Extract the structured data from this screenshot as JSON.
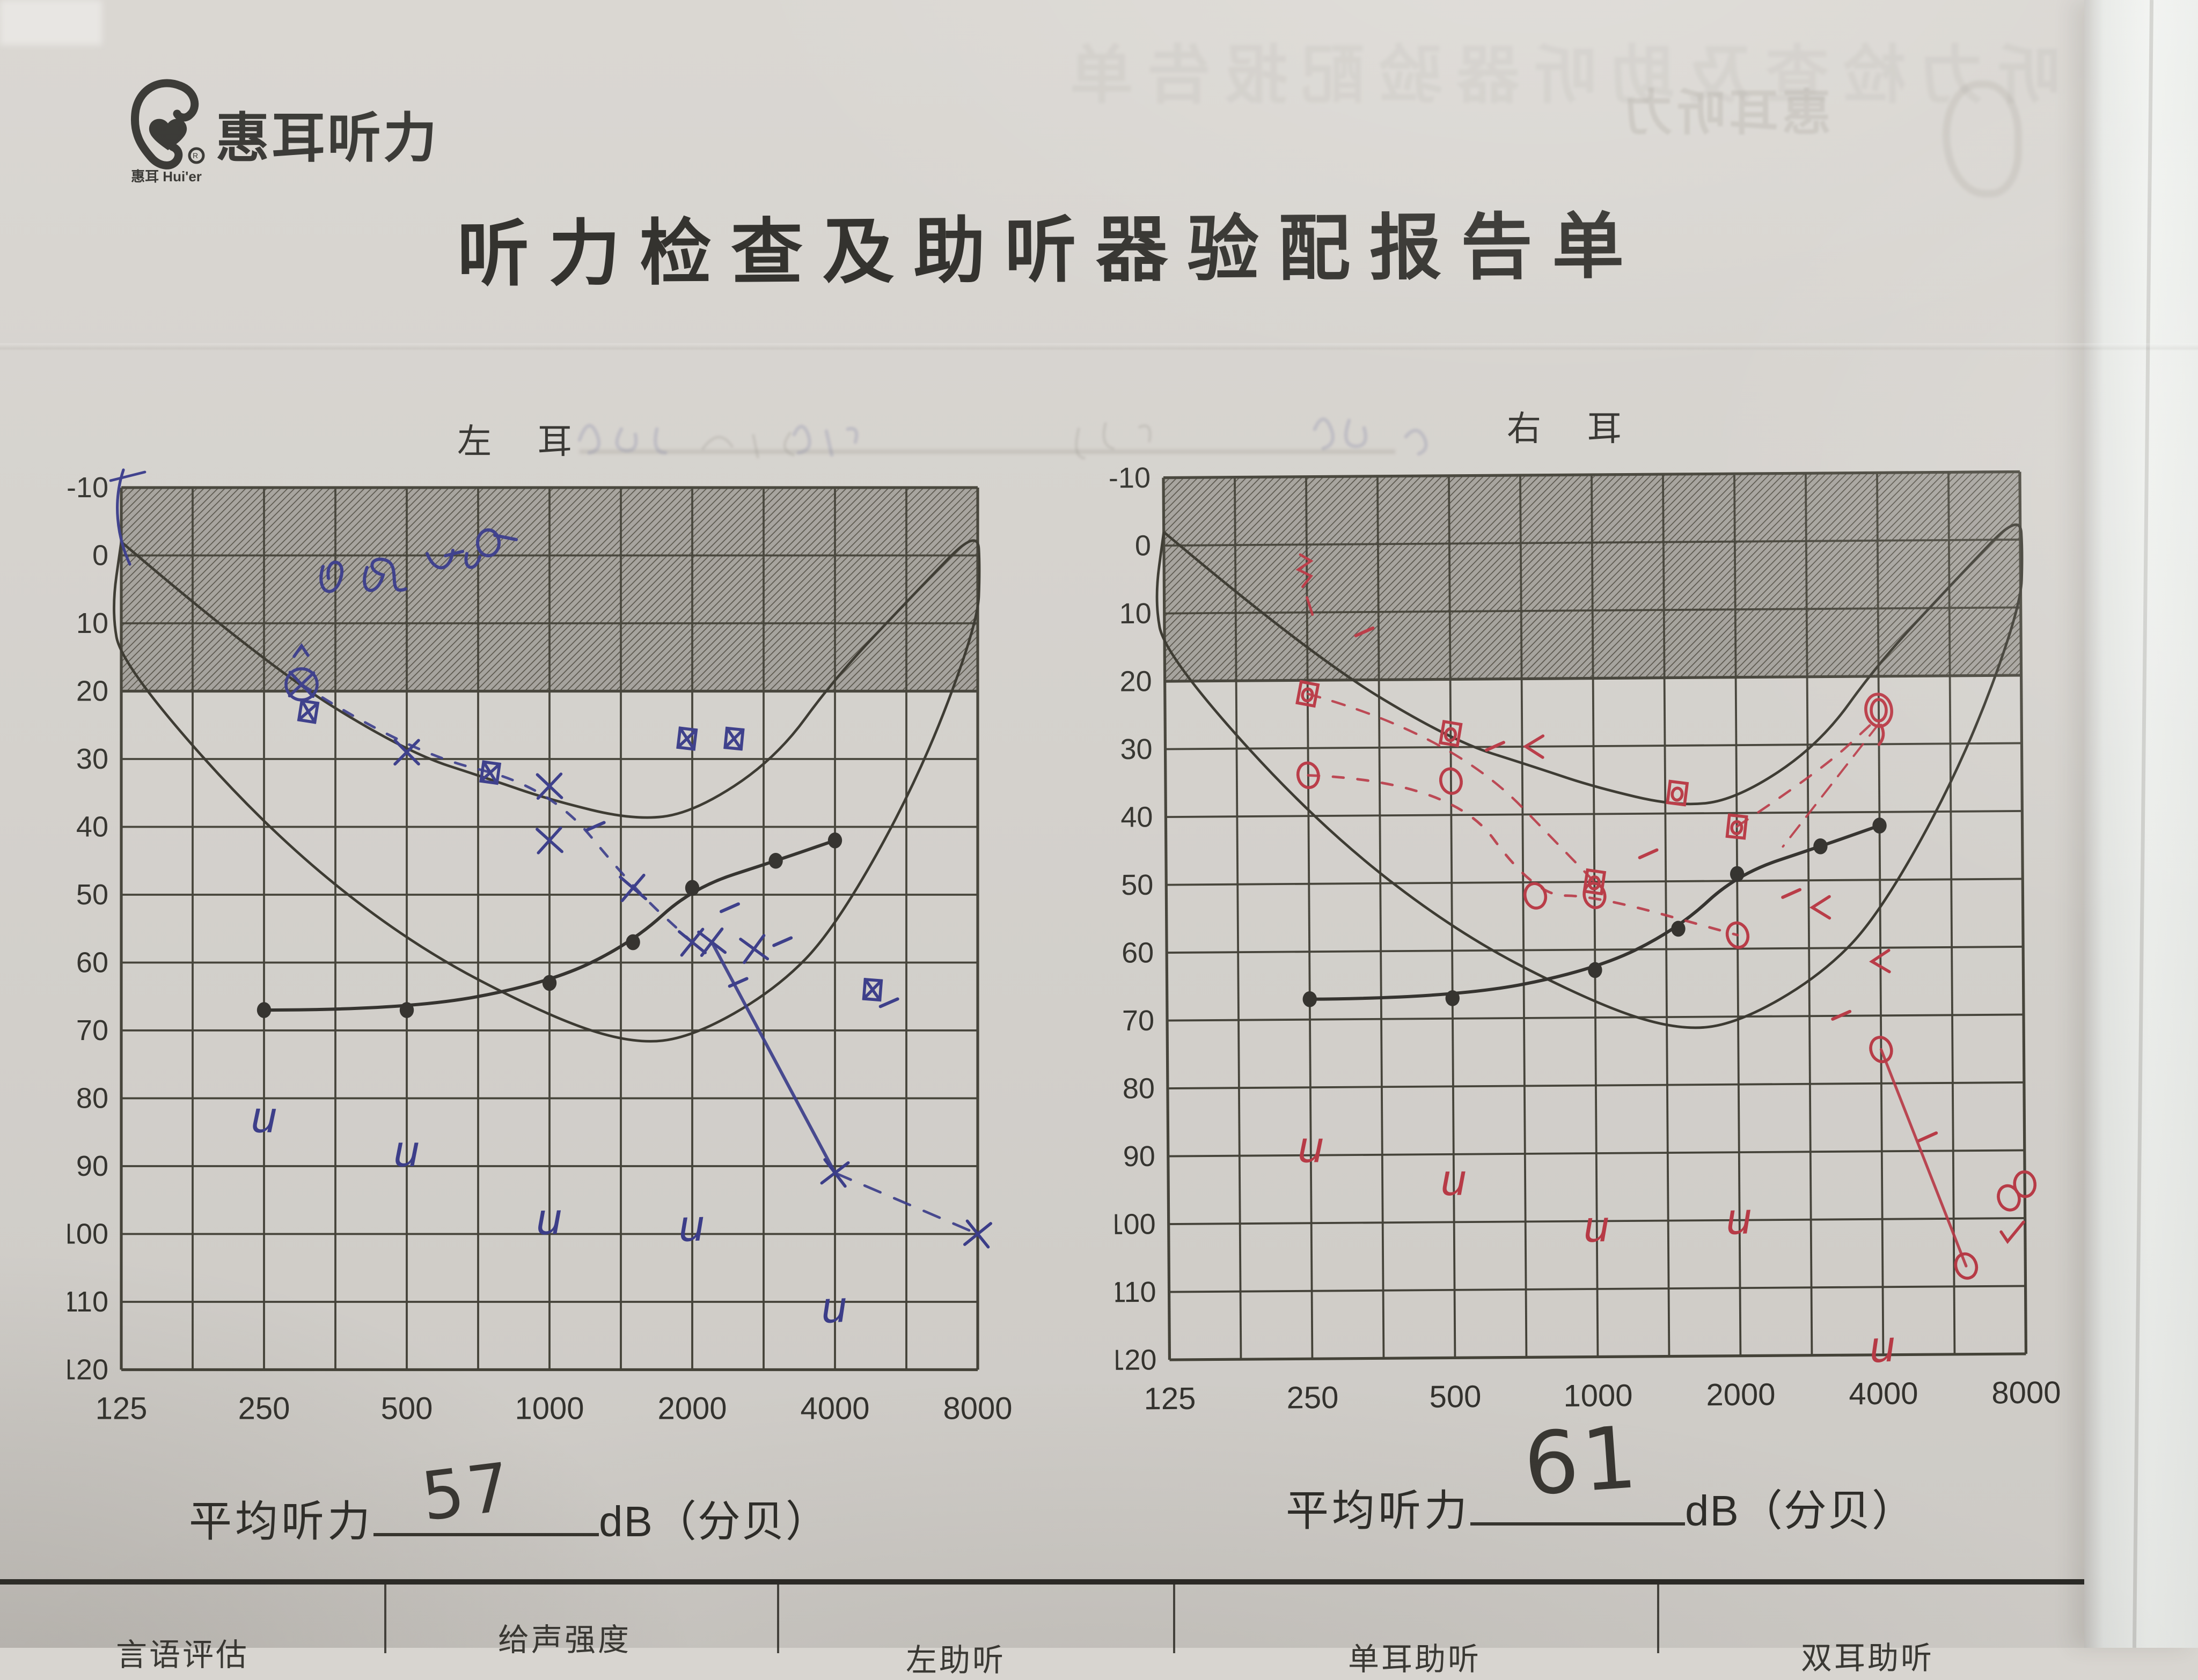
{
  "page": {
    "brand": "惠耳听力",
    "brand_sub": "惠耳 Hui'er",
    "title": "听力检查及助听器验配报告单"
  },
  "left_panel": {
    "ear_label": "左 耳",
    "avg_label": "平均听力",
    "avg_value": "57",
    "avg_unit": "dB（分贝）"
  },
  "right_panel": {
    "ear_label": "右 耳",
    "avg_label": "平均听力",
    "avg_value": "61",
    "avg_unit": "dB（分贝）"
  },
  "axis": {
    "freq_ticks": [
      "125",
      "250",
      "500",
      "1000",
      "2000",
      "4000",
      "8000"
    ],
    "db_ticks": [
      "-10",
      "0",
      "10",
      "20",
      "30",
      "40",
      "50",
      "60",
      "70",
      "80",
      "90",
      "100",
      "110",
      "120"
    ]
  },
  "bottom_table": {
    "columns": [
      "言语评估",
      "给声强度",
      "左助听",
      "单耳助听",
      "双耳助听"
    ]
  },
  "ink_colors": {
    "left_pen": "#3b3d8c",
    "right_pen": "#bd3a46",
    "printed_black": "#33312d"
  },
  "speech_banana": {
    "upper": [
      [
        125,
        -2
      ],
      [
        250,
        16
      ],
      [
        500,
        29
      ],
      [
        750,
        33
      ],
      [
        1000,
        36
      ],
      [
        1500,
        39
      ],
      [
        2000,
        38
      ],
      [
        3000,
        30
      ],
      [
        4000,
        18
      ],
      [
        6000,
        5
      ],
      [
        8000,
        -4
      ]
    ],
    "lower": [
      [
        125,
        16
      ],
      [
        250,
        40
      ],
      [
        500,
        57
      ],
      [
        1000,
        68
      ],
      [
        1500,
        72
      ],
      [
        2000,
        71
      ],
      [
        3000,
        64
      ],
      [
        4000,
        55
      ],
      [
        6000,
        33
      ],
      [
        8000,
        10
      ]
    ]
  },
  "chart_data": [
    {
      "type": "scatter",
      "title": "左耳",
      "ear": "left",
      "pen_color": "#3b3d8c",
      "x_ticks": [
        125,
        250,
        500,
        1000,
        2000,
        4000,
        8000
      ],
      "ylim": [
        -10,
        120
      ],
      "y_step": 10,
      "shaded_band_db": [
        -10,
        20
      ],
      "average_hearing_db": 57,
      "aided_curve_dots": {
        "freq": [
          250,
          500,
          1000,
          1500,
          2000,
          3000,
          4000
        ],
        "db": [
          67,
          67,
          63,
          57,
          49,
          45,
          42
        ]
      },
      "air_conduction_X": [
        [
          300,
          19
        ],
        [
          500,
          29
        ],
        [
          1000,
          34
        ],
        [
          1000,
          42
        ],
        [
          1500,
          49
        ],
        [
          2000,
          57
        ],
        [
          2200,
          57
        ],
        [
          2700,
          58
        ],
        [
          4000,
          91
        ],
        [
          8000,
          100
        ]
      ],
      "dashed_chain": [
        [
          300,
          19
        ],
        [
          500,
          29
        ],
        [
          1000,
          34
        ],
        [
          1500,
          49
        ],
        [
          2000,
          57
        ]
      ],
      "circled_point": [
        300,
        19
      ],
      "bone_squares": [
        [
          310,
          23
        ],
        [
          750,
          32
        ],
        [
          1950,
          27
        ],
        [
          2450,
          27
        ],
        [
          4800,
          64
        ]
      ],
      "long_stroke": [
        [
          2200,
          57
        ],
        [
          4000,
          91
        ]
      ],
      "tail_dash": [
        [
          4000,
          91
        ],
        [
          8000,
          100
        ]
      ],
      "no_response_u": [
        [
          250,
          85
        ],
        [
          500,
          90
        ],
        [
          1000,
          100
        ],
        [
          2000,
          101
        ],
        [
          4000,
          113
        ]
      ],
      "stray_dashes": [
        [
          1250,
          40
        ],
        [
          2400,
          52
        ],
        [
          3100,
          57
        ],
        [
          5200,
          66
        ],
        [
          2500,
          63
        ]
      ]
    },
    {
      "type": "scatter",
      "title": "右耳",
      "ear": "right",
      "pen_color": "#bd3a46",
      "x_ticks": [
        125,
        250,
        500,
        1000,
        2000,
        4000,
        8000
      ],
      "ylim": [
        -10,
        120
      ],
      "y_step": 10,
      "shaded_band_db": [
        -10,
        20
      ],
      "average_hearing_db": 61,
      "aided_curve_dots": {
        "freq": [
          250,
          500,
          1000,
          1500,
          2000,
          3000,
          4000
        ],
        "db": [
          67,
          67,
          63,
          57,
          49,
          45,
          42
        ]
      },
      "air_conduction_O": [
        [
          250,
          34
        ],
        [
          500,
          35
        ],
        [
          750,
          52
        ],
        [
          1000,
          52
        ],
        [
          2000,
          58
        ],
        [
          4000,
          75
        ],
        [
          6000,
          107
        ],
        [
          7400,
          97
        ],
        [
          8000,
          95
        ]
      ],
      "dashed_chain": [
        [
          250,
          34
        ],
        [
          500,
          35
        ],
        [
          750,
          52
        ],
        [
          1000,
          52
        ],
        [
          2000,
          58
        ]
      ],
      "squares_with_circle": [
        [
          250,
          22
        ],
        [
          500,
          28
        ],
        [
          1000,
          50
        ],
        [
          1500,
          37
        ],
        [
          2000,
          42
        ]
      ],
      "squares_dash_chain_a": [
        [
          250,
          22
        ],
        [
          500,
          28
        ],
        [
          1000,
          50
        ]
      ],
      "squares_dash_chain_b": [
        [
          2000,
          42
        ],
        [
          3000,
          34
        ],
        [
          4000,
          26
        ]
      ],
      "circled_Q": [
        4000,
        25
      ],
      "q_link_line": [
        [
          4000,
          27
        ],
        [
          2500,
          45
        ]
      ],
      "steep_line": [
        [
          4000,
          75
        ],
        [
          6000,
          107
        ]
      ],
      "angle_marks": [
        [
          750,
          30
        ],
        [
          3000,
          54
        ],
        [
          4000,
          62
        ]
      ],
      "check_mark": [
        7500,
        102
      ],
      "no_response_u": [
        [
          250,
          91
        ],
        [
          500,
          96
        ],
        [
          1000,
          103
        ],
        [
          2000,
          102
        ],
        [
          4000,
          121
        ]
      ],
      "top_scribble": [
        250,
        4
      ],
      "stray_dashes": [
        [
          620,
          30
        ],
        [
          1300,
          46
        ],
        [
          2600,
          52
        ],
        [
          3300,
          70
        ],
        [
          5000,
          88
        ],
        [
          330,
          13
        ]
      ]
    }
  ]
}
